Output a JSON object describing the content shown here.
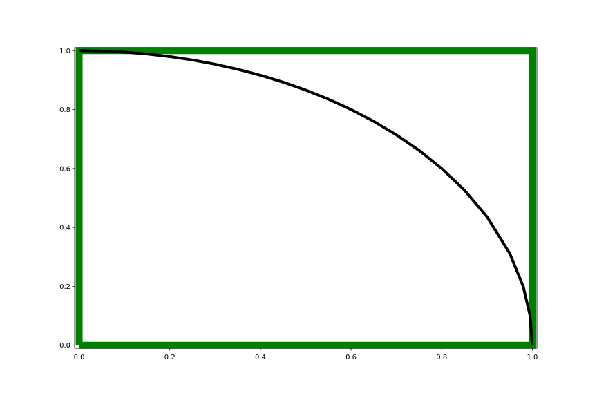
{
  "chart_data": {
    "type": "line",
    "title": "",
    "xlabel": "",
    "ylabel": "",
    "xlim": [
      -0.01,
      1.01
    ],
    "ylim": [
      -0.01,
      1.01
    ],
    "grid": false,
    "legend": "none",
    "x_ticks": [
      {
        "value": 0.0,
        "label": "0.0"
      },
      {
        "value": 0.2,
        "label": "0.2"
      },
      {
        "value": 0.4,
        "label": "0.4"
      },
      {
        "value": 0.6,
        "label": "0.6"
      },
      {
        "value": 0.8,
        "label": "0.8"
      },
      {
        "value": 1.0,
        "label": "1.0"
      }
    ],
    "y_ticks": [
      {
        "value": 0.0,
        "label": "0.0"
      },
      {
        "value": 0.2,
        "label": "0.2"
      },
      {
        "value": 0.4,
        "label": "0.4"
      },
      {
        "value": 0.6,
        "label": "0.6"
      },
      {
        "value": 0.8,
        "label": "0.8"
      },
      {
        "value": 1.0,
        "label": "1.0"
      }
    ],
    "series": [
      {
        "color": "#008000",
        "x": [
          0,
          1,
          1,
          0,
          0
        ],
        "y": [
          0,
          0,
          1,
          1,
          0
        ]
      },
      {
        "color": "#000000",
        "x": [
          0.0,
          0.05,
          0.1,
          0.15,
          0.2,
          0.25,
          0.3,
          0.35,
          0.4,
          0.45,
          0.5,
          0.55,
          0.6,
          0.65,
          0.7,
          0.75,
          0.8,
          0.85,
          0.9,
          0.95,
          0.98,
          0.995,
          1.0
        ],
        "y": [
          1.0,
          0.9987,
          0.995,
          0.9887,
          0.9798,
          0.9682,
          0.9539,
          0.9367,
          0.9165,
          0.893,
          0.866,
          0.8352,
          0.8,
          0.7599,
          0.7141,
          0.6614,
          0.6,
          0.5268,
          0.4359,
          0.3122,
          0.199,
          0.0999,
          0.0
        ]
      }
    ]
  }
}
